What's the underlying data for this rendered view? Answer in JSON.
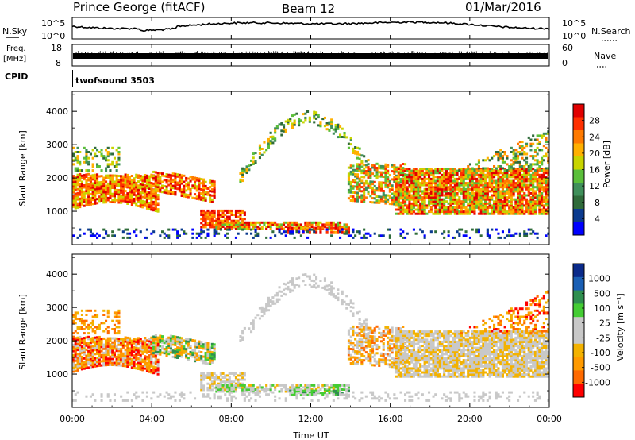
{
  "header": {
    "station": "Prince George (fitACF)",
    "beam": "Beam 12",
    "date": "01/Mar/2016"
  },
  "nsky_panel": {
    "left_label": "N.Sky",
    "right_label": "N.Search",
    "left_ticks": [
      "10^5",
      "10^0"
    ],
    "right_ticks": [
      "10^5",
      "10^0"
    ]
  },
  "freq_panel": {
    "left_label_1": "Freq.",
    "left_label_2": "[MHz]",
    "right_label": "Nave",
    "left_ticks": [
      "18",
      "8"
    ],
    "right_ticks": [
      "60",
      "0"
    ]
  },
  "cpid_panel": {
    "label": "CPID",
    "program": "twofsound 3503"
  },
  "axes": {
    "x_label": "Time UT",
    "x_ticks": [
      "00:00",
      "04:00",
      "08:00",
      "12:00",
      "16:00",
      "20:00",
      "00:00"
    ],
    "y_label": "Slant Range [km]",
    "y_ticks": [
      "4000",
      "3000",
      "2000",
      "1000"
    ],
    "y_range": [
      0,
      4600
    ]
  },
  "colors": {
    "power_scale": [
      "#0000ff",
      "#0b3a8e",
      "#2f6b3a",
      "#3f8f5a",
      "#5bbf3a",
      "#c8d400",
      "#ffb000",
      "#ff7a00",
      "#ff3000",
      "#e00000"
    ],
    "velocity_scale": [
      "#ff0000",
      "#ff6a00",
      "#ff9a00",
      "#f3b200",
      "#c8c8c8",
      "#c8c8c8",
      "#44cc33",
      "#2f8f4f",
      "#1a5fb4",
      "#0a2a8a"
    ]
  },
  "chart_data": [
    {
      "type": "heatmap",
      "title": "Power",
      "colorbar_label": "Power [dB]",
      "colorbar_ticks": [
        "28",
        "24",
        "20",
        "16",
        "12",
        "8",
        "4"
      ],
      "colorbar_range": [
        0,
        30
      ]
    },
    {
      "type": "heatmap",
      "title": "Velocity",
      "colorbar_label": "Velocity [m s⁻¹]",
      "colorbar_ticks": [
        "1000",
        "500",
        "100",
        "25",
        "-25",
        "-100",
        "-500",
        "-1000"
      ]
    }
  ]
}
